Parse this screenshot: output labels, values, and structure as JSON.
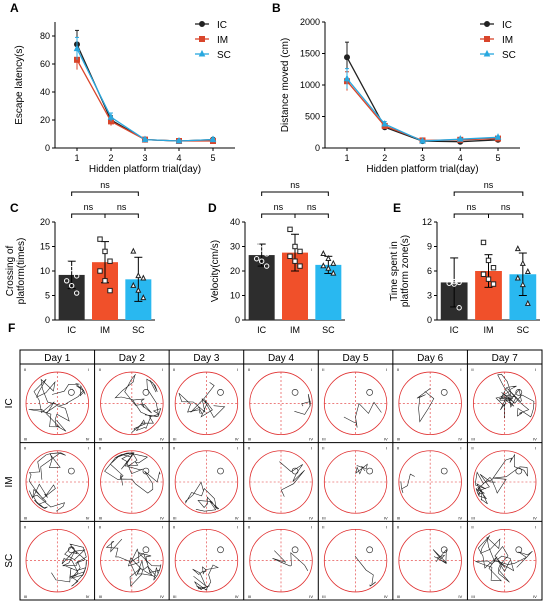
{
  "panel_labels": [
    "A",
    "B",
    "C",
    "D",
    "E",
    "F"
  ],
  "chart_data": [
    {
      "panel": "A",
      "type": "line",
      "ylabel": "Escape latency(s)",
      "xlabel": "Hidden platform trial(day)",
      "x": [
        1,
        2,
        3,
        4,
        5
      ],
      "xticks": [
        "1",
        "2",
        "3",
        "4",
        "5"
      ],
      "ylim": [
        0,
        90
      ],
      "yticks": [
        "0",
        "20",
        "40",
        "60",
        "80"
      ],
      "legend_position": "top-right",
      "series": [
        {
          "name": "IC",
          "color": "#222222",
          "marker": "circle",
          "values": [
            74,
            20,
            6,
            5,
            6
          ],
          "err": [
            10,
            3,
            1,
            1,
            1
          ]
        },
        {
          "name": "IM",
          "color": "#d9452b",
          "marker": "square",
          "values": [
            63,
            19,
            6,
            5,
            5
          ],
          "err": [
            7,
            3,
            1,
            1,
            1
          ]
        },
        {
          "name": "SC",
          "color": "#29a8df",
          "marker": "triangle",
          "values": [
            71,
            22,
            6,
            5,
            6
          ],
          "err": [
            8,
            3,
            1,
            1,
            1
          ]
        }
      ]
    },
    {
      "panel": "B",
      "type": "line",
      "ylabel": "Distance moved (cm)",
      "xlabel": "Hidden platform trial(day)",
      "x": [
        1,
        2,
        3,
        4,
        5
      ],
      "xticks": [
        "1",
        "2",
        "3",
        "4",
        "5"
      ],
      "ylim": [
        0,
        2000
      ],
      "yticks": [
        "0",
        "500",
        "1000",
        "1500",
        "2000"
      ],
      "legend_position": "top-right",
      "series": [
        {
          "name": "IC",
          "color": "#222222",
          "marker": "circle",
          "values": [
            1440,
            330,
            110,
            100,
            130
          ],
          "err": [
            240,
            40,
            15,
            15,
            20
          ]
        },
        {
          "name": "IM",
          "color": "#d9452b",
          "marker": "square",
          "values": [
            1060,
            350,
            120,
            130,
            150
          ],
          "err": [
            150,
            40,
            15,
            15,
            20
          ]
        },
        {
          "name": "SC",
          "color": "#29a8df",
          "marker": "triangle",
          "values": [
            1100,
            380,
            110,
            140,
            170
          ],
          "err": [
            160,
            40,
            15,
            15,
            20
          ]
        }
      ]
    },
    {
      "panel": "C",
      "type": "bar",
      "ylabel": "Crossing of platform(times)",
      "categories": [
        "IC",
        "IM",
        "SC"
      ],
      "colors": [
        "#2d2d2d",
        "#f0502a",
        "#29b8f0"
      ],
      "values": [
        9.2,
        11.8,
        8.3
      ],
      "err": [
        2.8,
        4.2,
        4.5
      ],
      "ylim": [
        0,
        20
      ],
      "yticks": [
        "0",
        "5",
        "10",
        "15",
        "20"
      ],
      "points": [
        [
          11.5,
          10.5,
          9,
          8,
          7,
          5.5
        ],
        [
          16.5,
          14,
          12,
          10,
          8,
          6
        ],
        [
          14,
          9,
          8.5,
          7,
          6,
          4.5
        ]
      ],
      "sig": [
        {
          "pair": [
            0,
            2
          ],
          "text": "ns",
          "level": 2
        },
        {
          "pair": [
            0,
            1
          ],
          "text": "ns",
          "level": 1
        },
        {
          "pair": [
            1,
            2
          ],
          "text": "ns",
          "level": 1
        }
      ]
    },
    {
      "panel": "D",
      "type": "bar",
      "ylabel": "Velocity(cm/s)",
      "categories": [
        "IC",
        "IM",
        "SC"
      ],
      "colors": [
        "#2d2d2d",
        "#f0502a",
        "#29b8f0"
      ],
      "values": [
        26.5,
        27.5,
        22.5
      ],
      "err": [
        4.5,
        7.5,
        3.5
      ],
      "ylim": [
        0,
        40
      ],
      "yticks": [
        "0",
        "10",
        "20",
        "30",
        "40"
      ],
      "points": [
        [
          31,
          29,
          27,
          25,
          24,
          22
        ],
        [
          37,
          30,
          28,
          26,
          24,
          22
        ],
        [
          27,
          25,
          23,
          22,
          21,
          19
        ]
      ],
      "sig": [
        {
          "pair": [
            0,
            2
          ],
          "text": "ns",
          "level": 2
        },
        {
          "pair": [
            0,
            1
          ],
          "text": "ns",
          "level": 1
        },
        {
          "pair": [
            1,
            2
          ],
          "text": "ns",
          "level": 1
        }
      ]
    },
    {
      "panel": "E",
      "type": "bar",
      "ylabel": "Time spent in platform zone(s)",
      "categories": [
        "IC",
        "IM",
        "SC"
      ],
      "colors": [
        "#2d2d2d",
        "#f0502a",
        "#29b8f0"
      ],
      "values": [
        4.6,
        6.0,
        5.6
      ],
      "err": [
        3.0,
        2.0,
        2.6
      ],
      "ylim": [
        0,
        12
      ],
      "yticks": [
        "0",
        "3",
        "6",
        "9",
        "12"
      ],
      "points": [
        [
          9.5,
          4.7,
          4.6,
          4.5,
          4.4,
          1.5
        ],
        [
          9.5,
          7.3,
          6.4,
          5.6,
          5.0,
          4.4
        ],
        [
          8.7,
          6.9,
          5.9,
          5.1,
          4.3,
          2.0
        ]
      ],
      "sig": [
        {
          "pair": [
            0,
            2
          ],
          "text": "ns",
          "level": 2
        },
        {
          "pair": [
            0,
            1
          ],
          "text": "ns",
          "level": 1
        },
        {
          "pair": [
            1,
            2
          ],
          "text": "ns",
          "level": 1
        }
      ]
    }
  ],
  "trajectory_panel": {
    "label": "F",
    "days": [
      "Day 1",
      "Day 2",
      "Day 3",
      "Day 4",
      "Day 5",
      "Day 6",
      "Day 7"
    ],
    "groups": [
      "IC",
      "IM",
      "SC"
    ],
    "quadrant_labels": [
      "II",
      "I",
      "III",
      "IV"
    ]
  }
}
